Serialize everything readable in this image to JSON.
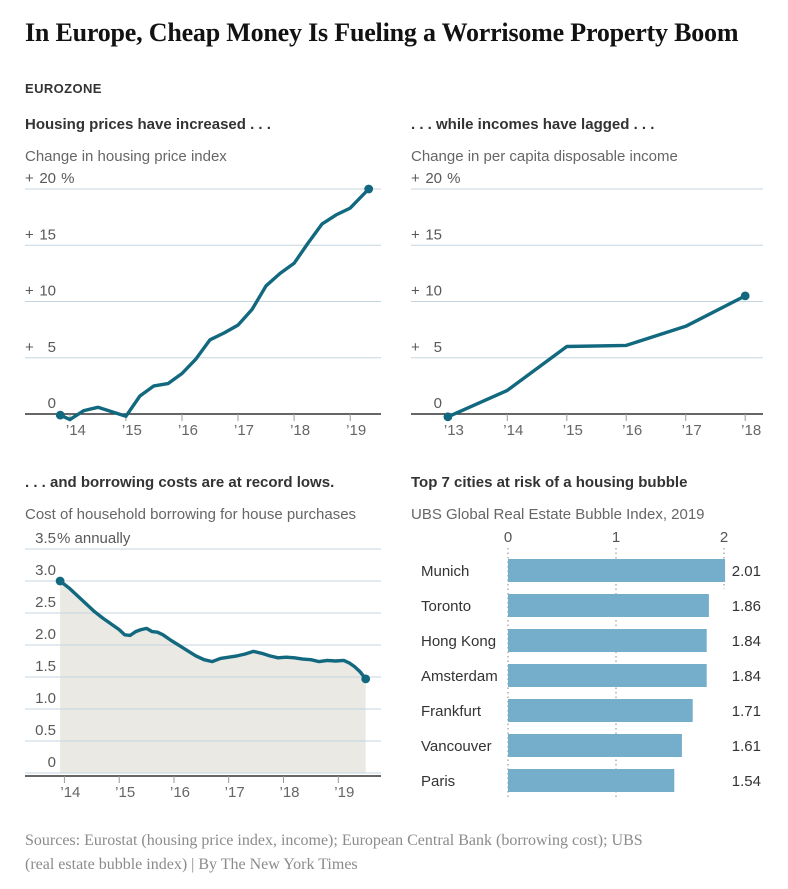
{
  "page": {
    "title": "In Europe, Cheap Money Is Fueling a Worrisome Property Boom",
    "kicker": "EUROZONE",
    "source_line1": "Sources: Eurostat (housing price index, income); European Central Bank (borrowing cost); UBS",
    "source_line2": "(real estate bubble index) | By The New York Times"
  },
  "colors": {
    "line": "#12697F",
    "bar": "#74AECB",
    "grid": "#C5D5E0",
    "area": "#EAE9E3",
    "axis": "#333333",
    "tick": "#999999",
    "axis_label": "#595959",
    "bar_label": "#333333"
  },
  "chart_data": [
    {
      "id": "housing",
      "type": "line",
      "title": "Housing prices have increased . . .",
      "subtitle": "Change in housing price index",
      "x_range": [
        2013.2,
        2019.55
      ],
      "y_range": [
        0,
        20
      ],
      "zero": "axis",
      "start_dot": true,
      "end_dot": true,
      "y_ticks": [
        {
          "v": 20,
          "prefix": "+",
          "num": "20",
          "suffix": " %"
        },
        {
          "v": 15,
          "prefix": "+",
          "num": "15"
        },
        {
          "v": 10,
          "prefix": "+",
          "num": "10"
        },
        {
          "v": 5,
          "prefix": "+",
          "num": "5"
        },
        {
          "v": 0,
          "num": "0"
        }
      ],
      "x_ticks": [
        {
          "v": 2014,
          "label": "’14"
        },
        {
          "v": 2015,
          "label": "’15"
        },
        {
          "v": 2016,
          "label": "’16"
        },
        {
          "v": 2017,
          "label": "’17"
        },
        {
          "v": 2018,
          "label": "’18"
        },
        {
          "v": 2019,
          "label": "’19"
        }
      ],
      "points": [
        [
          2013.83,
          -0.1
        ],
        [
          2014.0,
          -0.5
        ],
        [
          2014.25,
          0.3
        ],
        [
          2014.5,
          0.6
        ],
        [
          2014.75,
          0.2
        ],
        [
          2015.0,
          -0.2
        ],
        [
          2015.25,
          1.6
        ],
        [
          2015.5,
          2.5
        ],
        [
          2015.75,
          2.7
        ],
        [
          2016.0,
          3.6
        ],
        [
          2016.25,
          4.9
        ],
        [
          2016.5,
          6.6
        ],
        [
          2016.75,
          7.2
        ],
        [
          2017.0,
          7.9
        ],
        [
          2017.25,
          9.3
        ],
        [
          2017.5,
          11.4
        ],
        [
          2017.75,
          12.5
        ],
        [
          2018.0,
          13.4
        ],
        [
          2018.25,
          15.2
        ],
        [
          2018.5,
          16.9
        ],
        [
          2018.75,
          17.7
        ],
        [
          2019.0,
          18.3
        ],
        [
          2019.33,
          20.0
        ]
      ]
    },
    {
      "id": "income",
      "type": "line",
      "title": ". . . while incomes have lagged . . .",
      "subtitle": "Change in per capita disposable income",
      "x_range": [
        2012.38,
        2018.3
      ],
      "y_range": [
        0,
        20
      ],
      "zero": "axis",
      "start_dot": true,
      "end_dot": true,
      "y_ticks": [
        {
          "v": 20,
          "prefix": "+",
          "num": "20",
          "suffix": " %"
        },
        {
          "v": 15,
          "prefix": "+",
          "num": "15"
        },
        {
          "v": 10,
          "prefix": "+",
          "num": "10"
        },
        {
          "v": 5,
          "prefix": "+",
          "num": "5"
        },
        {
          "v": 0,
          "num": "0"
        }
      ],
      "x_ticks": [
        {
          "v": 2013,
          "label": "’13"
        },
        {
          "v": 2014,
          "label": "’14"
        },
        {
          "v": 2015,
          "label": "’15"
        },
        {
          "v": 2016,
          "label": "’16"
        },
        {
          "v": 2017,
          "label": "’17"
        },
        {
          "v": 2018,
          "label": "’18"
        }
      ],
      "points": [
        [
          2013,
          -0.25
        ],
        [
          2014,
          2.1
        ],
        [
          2015,
          6.0
        ],
        [
          2016,
          6.1
        ],
        [
          2017,
          7.8
        ],
        [
          2018,
          10.5
        ]
      ]
    },
    {
      "id": "borrowing",
      "type": "area",
      "title": ". . . and borrowing costs are at record lows.",
      "subtitle": "Cost of household borrowing for house purchases",
      "x_range": [
        2013.28,
        2019.78
      ],
      "y_range": [
        0,
        3.5
      ],
      "zero": "grid",
      "area": true,
      "start_dot": true,
      "end_dot": true,
      "y_ticks": [
        {
          "v": 3.5,
          "num": "3.5",
          "suffix": "% annually"
        },
        {
          "v": 3.0,
          "num": "3.0"
        },
        {
          "v": 2.5,
          "num": "2.5"
        },
        {
          "v": 2.0,
          "num": "2.0"
        },
        {
          "v": 1.5,
          "num": "1.5"
        },
        {
          "v": 1.0,
          "num": "1.0"
        },
        {
          "v": 0.5,
          "num": "0.5"
        },
        {
          "v": 0,
          "num": "0"
        }
      ],
      "x_ticks": [
        {
          "v": 2014,
          "label": "’14"
        },
        {
          "v": 2015,
          "label": "’15"
        },
        {
          "v": 2016,
          "label": "’16"
        },
        {
          "v": 2017,
          "label": "’17"
        },
        {
          "v": 2018,
          "label": "’18"
        },
        {
          "v": 2019,
          "label": "’19"
        }
      ],
      "points": [
        [
          2013.92,
          3.0
        ],
        [
          2014.1,
          2.88
        ],
        [
          2014.25,
          2.76
        ],
        [
          2014.4,
          2.64
        ],
        [
          2014.55,
          2.52
        ],
        [
          2014.7,
          2.42
        ],
        [
          2014.85,
          2.33
        ],
        [
          2015.0,
          2.24
        ],
        [
          2015.1,
          2.16
        ],
        [
          2015.2,
          2.15
        ],
        [
          2015.3,
          2.21
        ],
        [
          2015.4,
          2.24
        ],
        [
          2015.5,
          2.26
        ],
        [
          2015.6,
          2.21
        ],
        [
          2015.7,
          2.2
        ],
        [
          2015.8,
          2.16
        ],
        [
          2015.95,
          2.07
        ],
        [
          2016.1,
          1.99
        ],
        [
          2016.25,
          1.91
        ],
        [
          2016.4,
          1.83
        ],
        [
          2016.55,
          1.77
        ],
        [
          2016.7,
          1.74
        ],
        [
          2016.85,
          1.79
        ],
        [
          2017.0,
          1.81
        ],
        [
          2017.15,
          1.83
        ],
        [
          2017.3,
          1.86
        ],
        [
          2017.45,
          1.9
        ],
        [
          2017.6,
          1.87
        ],
        [
          2017.75,
          1.83
        ],
        [
          2017.9,
          1.8
        ],
        [
          2018.05,
          1.81
        ],
        [
          2018.2,
          1.8
        ],
        [
          2018.35,
          1.78
        ],
        [
          2018.5,
          1.77
        ],
        [
          2018.65,
          1.74
        ],
        [
          2018.8,
          1.76
        ],
        [
          2018.95,
          1.75
        ],
        [
          2019.1,
          1.76
        ],
        [
          2019.2,
          1.72
        ],
        [
          2019.3,
          1.66
        ],
        [
          2019.4,
          1.58
        ],
        [
          2019.5,
          1.47
        ]
      ]
    },
    {
      "id": "bubble",
      "type": "bar",
      "title": "Top 7 cities at risk of a housing bubble",
      "subtitle": "UBS Global Real Estate Bubble Index, 2019",
      "axis_ticks": [
        0,
        1,
        2
      ],
      "categories": [
        "Munich",
        "Toronto",
        "Hong Kong",
        "Amsterdam",
        "Frankfurt",
        "Vancouver",
        "Paris"
      ],
      "values": [
        2.01,
        1.86,
        1.84,
        1.84,
        1.71,
        1.61,
        1.54
      ],
      "value_labels": [
        "2.01",
        "1.86",
        "1.84",
        "1.84",
        "1.71",
        "1.61",
        "1.54"
      ]
    }
  ]
}
